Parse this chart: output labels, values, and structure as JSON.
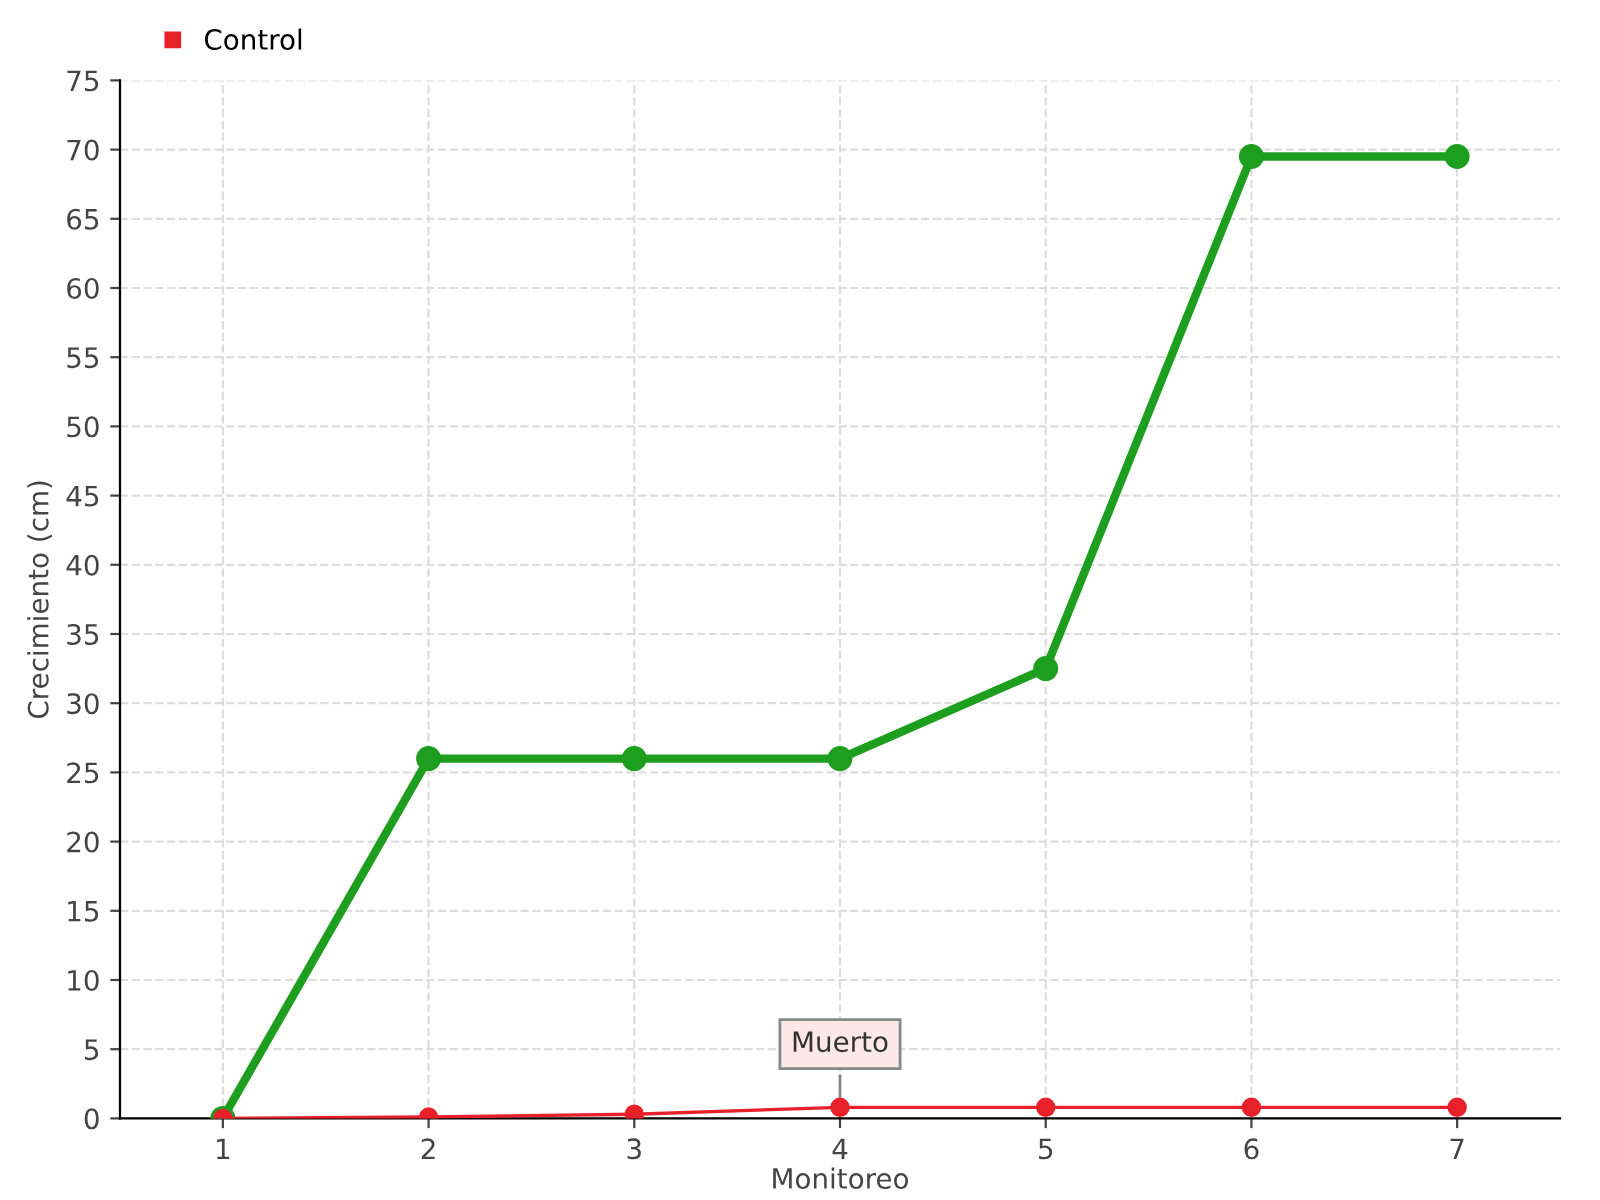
{
  "chart_data": {
    "type": "line",
    "xlabel": "Monitoreo",
    "ylabel": "Crecimiento (cm)",
    "categories": [
      "1",
      "2",
      "3",
      "4",
      "5",
      "6",
      "7"
    ],
    "series": [
      {
        "color": "#1e9e1e",
        "values": [
          0,
          26,
          26,
          26,
          32.5,
          69.5,
          69.5
        ]
      },
      {
        "name": "Control",
        "color": "#e8202a",
        "values": [
          0,
          0.1,
          0.3,
          0.8,
          0.8,
          0.8,
          0.8
        ]
      }
    ],
    "ylim": [
      0,
      75
    ],
    "yticks": [
      0,
      5,
      10,
      15,
      20,
      25,
      30,
      35,
      40,
      45,
      50,
      55,
      60,
      65,
      70,
      75
    ],
    "grid": true,
    "legend": "top left",
    "marker": "circle",
    "annotations": [
      {
        "text": "Muerto",
        "x": "4",
        "y": 0.8
      }
    ]
  }
}
